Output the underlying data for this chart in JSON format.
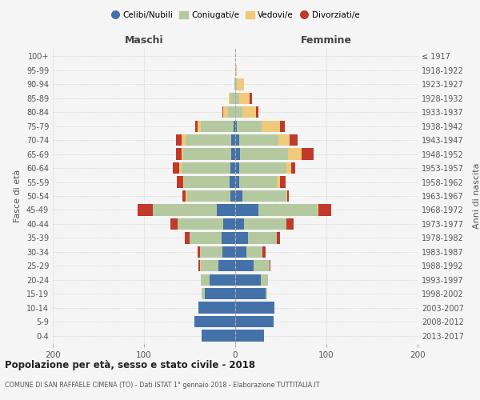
{
  "age_groups": [
    "0-4",
    "5-9",
    "10-14",
    "15-19",
    "20-24",
    "25-29",
    "30-34",
    "35-39",
    "40-44",
    "45-49",
    "50-54",
    "55-59",
    "60-64",
    "65-69",
    "70-74",
    "75-79",
    "80-84",
    "85-89",
    "90-94",
    "95-99",
    "100+"
  ],
  "birth_years": [
    "2013-2017",
    "2008-2012",
    "2003-2007",
    "1998-2002",
    "1993-1997",
    "1988-1992",
    "1983-1987",
    "1978-1982",
    "1973-1977",
    "1968-1972",
    "1963-1967",
    "1958-1962",
    "1953-1957",
    "1948-1952",
    "1943-1947",
    "1938-1942",
    "1933-1937",
    "1928-1932",
    "1923-1927",
    "1918-1922",
    "≤ 1917"
  ],
  "males": {
    "celibi": [
      37,
      45,
      40,
      33,
      28,
      18,
      14,
      15,
      13,
      20,
      5,
      6,
      5,
      4,
      4,
      2,
      0,
      0,
      0,
      0,
      0
    ],
    "coniugati": [
      0,
      0,
      0,
      4,
      10,
      20,
      25,
      35,
      50,
      70,
      48,
      50,
      54,
      53,
      50,
      36,
      8,
      5,
      1,
      0,
      0
    ],
    "vedovi": [
      0,
      0,
      0,
      0,
      0,
      1,
      0,
      0,
      0,
      0,
      1,
      1,
      2,
      2,
      5,
      3,
      5,
      2,
      0,
      0,
      0
    ],
    "divorziati": [
      0,
      0,
      0,
      0,
      0,
      1,
      2,
      5,
      8,
      17,
      4,
      7,
      7,
      6,
      6,
      3,
      1,
      0,
      0,
      0,
      0
    ]
  },
  "females": {
    "nubili": [
      32,
      42,
      43,
      33,
      28,
      20,
      12,
      14,
      10,
      25,
      8,
      4,
      4,
      5,
      4,
      2,
      0,
      0,
      0,
      0,
      0
    ],
    "coniugate": [
      0,
      0,
      0,
      2,
      8,
      18,
      18,
      32,
      46,
      65,
      48,
      42,
      52,
      53,
      43,
      27,
      8,
      4,
      2,
      0,
      0
    ],
    "vedove": [
      0,
      0,
      0,
      0,
      0,
      0,
      0,
      0,
      0,
      1,
      1,
      3,
      5,
      15,
      13,
      20,
      15,
      12,
      8,
      2,
      0
    ],
    "divorziate": [
      0,
      0,
      0,
      0,
      0,
      1,
      3,
      3,
      8,
      14,
      2,
      6,
      5,
      13,
      8,
      5,
      2,
      2,
      0,
      0,
      0
    ]
  },
  "colors": {
    "celibi": "#4472a8",
    "coniugati": "#b5c9a0",
    "vedovi": "#f0c97a",
    "divorziati": "#c0392b"
  },
  "xlim": 200,
  "title": "Popolazione per età, sesso e stato civile - 2018",
  "subtitle": "COMUNE DI SAN RAFFAELE CIMENA (TO) - Dati ISTAT 1° gennaio 2018 - Elaborazione TUTTITALIA.IT",
  "ylabel_left": "Fasce di età",
  "ylabel_right": "Anni di nascita",
  "xlabel_male": "Maschi",
  "xlabel_female": "Femmine",
  "legend_labels": [
    "Celibi/Nubili",
    "Coniugati/e",
    "Vedovi/e",
    "Divorziati/e"
  ],
  "background_color": "#f5f5f5",
  "grid_color": "#cccccc",
  "male_label_color": "#444444",
  "female_label_color": "#444444"
}
